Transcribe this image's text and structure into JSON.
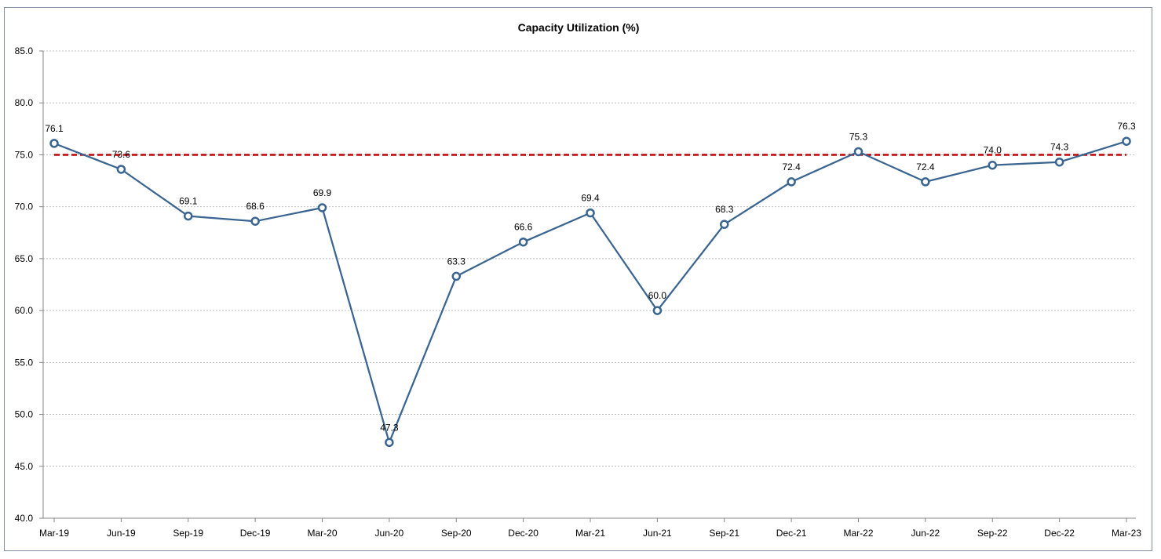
{
  "chart_data": {
    "type": "line",
    "title": "Capacity Utilization (%)",
    "xlabel": "",
    "ylabel": "",
    "ylim": [
      40.0,
      85.0
    ],
    "ytick_step": 5,
    "yticks": [
      "40.0",
      "45.0",
      "50.0",
      "55.0",
      "60.0",
      "65.0",
      "70.0",
      "75.0",
      "80.0",
      "85.0"
    ],
    "grid": true,
    "legend": "none",
    "categories": [
      "Mar-19",
      "Jun-19",
      "Sep-19",
      "Dec-19",
      "Mar-20",
      "Jun-20",
      "Sep-20",
      "Dec-20",
      "Mar-21",
      "Jun-21",
      "Sep-21",
      "Dec-21",
      "Mar-22",
      "Jun-22",
      "Sep-22",
      "Dec-22",
      "Mar-23"
    ],
    "series": [
      {
        "values": [
          76.1,
          73.6,
          69.1,
          68.6,
          69.9,
          47.3,
          63.3,
          66.6,
          69.4,
          60.0,
          68.3,
          72.4,
          75.3,
          72.4,
          74.0,
          74.3,
          76.3
        ],
        "labels": [
          "76.1",
          "73.6",
          "69.1",
          "68.6",
          "69.9",
          "47.3",
          "63.3",
          "66.6",
          "69.4",
          "60.0",
          "68.3",
          "72.4",
          "75.3",
          "72.4",
          "74.0",
          "74.3",
          "76.3"
        ],
        "color": "#3a6591"
      }
    ],
    "reference_line": {
      "value": 75.0,
      "color": "#c00000",
      "style": "dashed"
    }
  }
}
